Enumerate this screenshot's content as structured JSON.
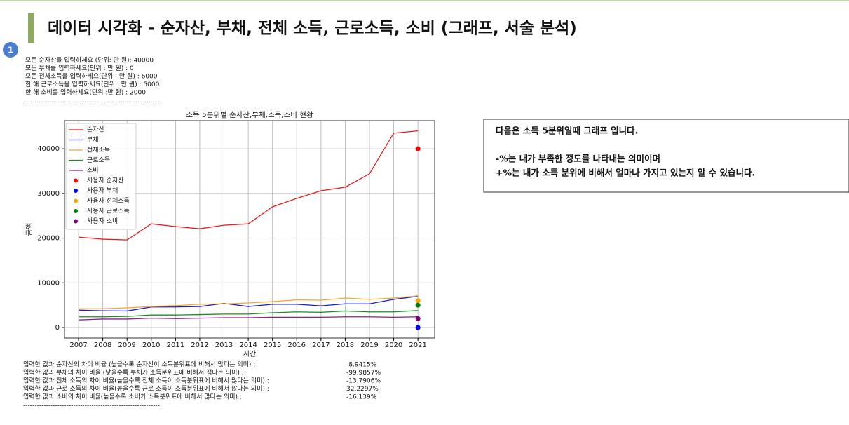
{
  "header": {
    "title": "데이터 시각화 - 순자산, 부채, 전체 소득, 근로소득, 소비 (그래프, 서술 분석)",
    "badge": "1"
  },
  "input_lines": [
    "모든 순자산을 입력하세요 (단위: 만 원): 40000",
    "모든 부채를 입력하세요(단위 : 만 원) : 0",
    "모든 전체소득을 입력하세요(단위 : 만 원) : 6000",
    "한 해 근로소득을 입력하세요(단위 : 만 원) : 5000",
    "한 해 소비를 입력하세요(단위 :만 원) : 2000"
  ],
  "separator": "------------------------------------------------------------",
  "chart_data": {
    "type": "line",
    "title": "소득 5분위별 순자산,부채,소득,소비 현황",
    "x_label": "시간",
    "y_label": "금액",
    "x": [
      2007,
      2008,
      2009,
      2010,
      2011,
      2012,
      2013,
      2014,
      2015,
      2016,
      2017,
      2018,
      2019,
      2020,
      2021
    ],
    "xlim": [
      2006.42,
      2021.69
    ],
    "xticks": [
      2007,
      2008,
      2009,
      2010,
      2011,
      2012,
      2013,
      2014,
      2015,
      2016,
      2017,
      2018,
      2019,
      2020,
      2021
    ],
    "ylim": [
      -2350,
      46300
    ],
    "yticks": [
      0,
      10000,
      20000,
      30000,
      40000
    ],
    "grid": true,
    "legend": "upper left",
    "series": [
      {
        "name": "순자산",
        "color": "#ee1c1c",
        "values": [
          20235,
          19765,
          19600,
          23200,
          22600,
          22100,
          22900,
          23200,
          27000,
          28900,
          30600,
          31400,
          34400,
          43500,
          44000
        ]
      },
      {
        "name": "부채",
        "color": "#1a1adf",
        "values": [
          3900,
          3750,
          3700,
          4600,
          4600,
          4700,
          5400,
          4700,
          5200,
          5200,
          4850,
          5300,
          5300,
          6300,
          7000
        ]
      },
      {
        "name": "전체소득",
        "color": "#f7a928",
        "values": [
          4200,
          4200,
          4400,
          4700,
          4900,
          5200,
          5300,
          5500,
          5800,
          6200,
          6100,
          6600,
          6300,
          6600,
          7100
        ]
      },
      {
        "name": "근로소득",
        "color": "#1e8c1e",
        "values": [
          2400,
          2400,
          2500,
          2800,
          2800,
          2900,
          3000,
          3000,
          3300,
          3500,
          3400,
          3700,
          3500,
          3500,
          3800
        ]
      },
      {
        "name": "소비",
        "color": "#8e1e8e",
        "values": [
          1700,
          1900,
          1900,
          2100,
          2000,
          2100,
          2200,
          2200,
          2300,
          2300,
          2300,
          2400,
          2400,
          2300,
          2400
        ]
      },
      {
        "name": "사용자 순자산",
        "color": "#ff0000",
        "type": "scatter",
        "x": [
          2021
        ],
        "values": [
          40000
        ]
      },
      {
        "name": "사용자 부채",
        "color": "#0000ff",
        "type": "scatter",
        "x": [
          2021
        ],
        "values": [
          0
        ]
      },
      {
        "name": "사용자 전체소득",
        "color": "#ffa500",
        "type": "scatter",
        "x": [
          2021
        ],
        "values": [
          6000
        ]
      },
      {
        "name": "사용자 근로소득",
        "color": "#008000",
        "type": "scatter",
        "x": [
          2021
        ],
        "values": [
          5000
        ]
      },
      {
        "name": "사용자 소비",
        "color": "#800080",
        "type": "scatter",
        "x": [
          2021
        ],
        "values": [
          2000
        ]
      }
    ]
  },
  "results": [
    {
      "label": "입력한 값과 순자산의 차이 비율 (높을수록 순자산이 소득분위표에 비해서 많다는 의미) :",
      "value": "-8.9415%"
    },
    {
      "label": "입력한 값과 부채의 차이 비율 (낮을수록 부채가 소득분위표에 비해서 적다는 의미) :",
      "value": "-99.9857%"
    },
    {
      "label": "입력한 값과 전체 소득의 차이 비율(높을수록 전체 소득이 소득분위표에 비해서 많다는 의미) :",
      "value": "-13.7906%"
    },
    {
      "label": "입력한 값과 근로 소득의 차이 비율(높을수록 근로 소득이 소득분위표에 비해서 많다는 의미) :",
      "value": "32.2297%"
    },
    {
      "label": "입력한 값과 소비의 차이 비율(높을수록 소비가 소득분위표에 비해서 많다는 의미) :",
      "value": "-16.139%"
    }
  ],
  "note": [
    "다음은 소득 5분위일때 그래프 입니다.",
    "-%는 내가 부족한 정도를 나타내는 의미이며",
    "+%는 내가 소득 분위에 비해서 얼마나 가지고 있는지 알 수 있습니다."
  ]
}
